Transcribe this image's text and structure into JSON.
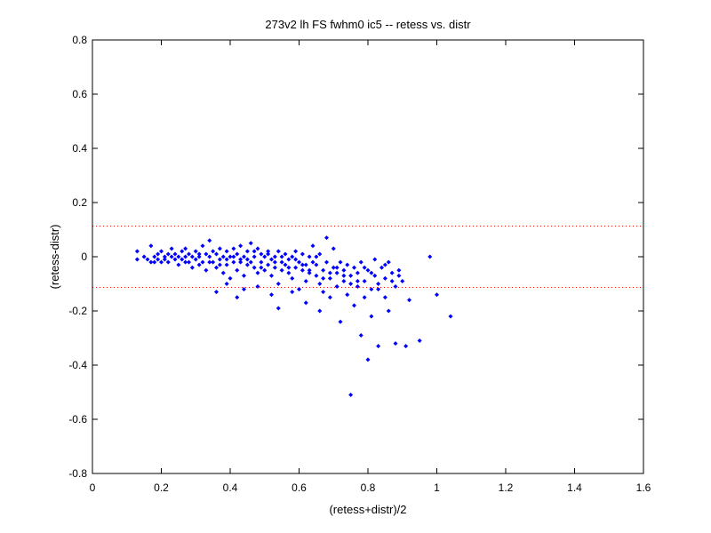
{
  "chart_data": {
    "type": "scatter",
    "title": "273v2 lh FS fwhm0 ic5 -- retess vs. distr",
    "xlabel": "(retess+distr)/2",
    "ylabel": "(retess-distr)",
    "xlim": [
      0,
      1.6
    ],
    "ylim": [
      -0.8,
      0.8
    ],
    "xticks": [
      "0",
      "0.2",
      "0.4",
      "0.6",
      "0.8",
      "1",
      "1.2",
      "1.4",
      "1.6"
    ],
    "yticks": [
      "0.8",
      "0.6",
      "0.4",
      "0.2",
      "0",
      "-0.2",
      "-0.4",
      "-0.6",
      "-0.8"
    ],
    "grid": false,
    "marker_color": "#0000ff",
    "reference_lines": {
      "y": [
        0.113,
        -0.113
      ],
      "color": "#ff0000",
      "style": "dotted"
    },
    "series": [
      {
        "points": [
          [
            0.13,
            0.02
          ],
          [
            0.13,
            -0.01
          ],
          [
            0.15,
            0.0
          ],
          [
            0.16,
            -0.01
          ],
          [
            0.17,
            -0.02
          ],
          [
            0.17,
            0.04
          ],
          [
            0.18,
            0.0
          ],
          [
            0.18,
            -0.02
          ],
          [
            0.19,
            0.01
          ],
          [
            0.19,
            -0.01
          ],
          [
            0.2,
            0.02
          ],
          [
            0.2,
            -0.02
          ],
          [
            0.21,
            0.0
          ],
          [
            0.21,
            -0.01
          ],
          [
            0.22,
            0.01
          ],
          [
            0.22,
            -0.02
          ],
          [
            0.23,
            0.0
          ],
          [
            0.23,
            0.03
          ],
          [
            0.24,
            -0.01
          ],
          [
            0.24,
            0.01
          ],
          [
            0.25,
            0.0
          ],
          [
            0.25,
            -0.03
          ],
          [
            0.26,
            0.02
          ],
          [
            0.26,
            -0.01
          ],
          [
            0.27,
            0.0
          ],
          [
            0.27,
            0.03
          ],
          [
            0.28,
            -0.02
          ],
          [
            0.28,
            0.01
          ],
          [
            0.29,
            0.0
          ],
          [
            0.29,
            -0.04
          ],
          [
            0.3,
            0.02
          ],
          [
            0.3,
            -0.01
          ],
          [
            0.31,
            0.0
          ],
          [
            0.31,
            -0.03
          ],
          [
            0.32,
            0.04
          ],
          [
            0.32,
            -0.02
          ],
          [
            0.33,
            0.01
          ],
          [
            0.33,
            -0.05
          ],
          [
            0.34,
            0.0
          ],
          [
            0.34,
            0.06
          ],
          [
            0.35,
            -0.02
          ],
          [
            0.35,
            0.02
          ],
          [
            0.36,
            -0.04
          ],
          [
            0.36,
            0.01
          ],
          [
            0.37,
            -0.01
          ],
          [
            0.37,
            0.03
          ],
          [
            0.38,
            -0.06
          ],
          [
            0.38,
            0.0
          ],
          [
            0.39,
            0.02
          ],
          [
            0.39,
            -0.03
          ],
          [
            0.4,
            0.0
          ],
          [
            0.4,
            -0.08
          ],
          [
            0.41,
            0.03
          ],
          [
            0.41,
            -0.02
          ],
          [
            0.42,
            0.01
          ],
          [
            0.42,
            -0.05
          ],
          [
            0.43,
            0.04
          ],
          [
            0.43,
            -0.01
          ],
          [
            0.44,
            0.0
          ],
          [
            0.44,
            -0.07
          ],
          [
            0.45,
            0.02
          ],
          [
            0.45,
            -0.03
          ],
          [
            0.46,
            0.05
          ],
          [
            0.46,
            -0.02
          ],
          [
            0.47,
            0.0
          ],
          [
            0.47,
            -0.04
          ],
          [
            0.48,
            0.03
          ],
          [
            0.48,
            -0.06
          ],
          [
            0.49,
            0.01
          ],
          [
            0.49,
            -0.02
          ],
          [
            0.5,
            0.0
          ],
          [
            0.5,
            -0.05
          ],
          [
            0.51,
            0.02
          ],
          [
            0.51,
            -0.03
          ],
          [
            0.52,
            -0.01
          ],
          [
            0.52,
            -0.07
          ],
          [
            0.53,
            0.0
          ],
          [
            0.53,
            -0.04
          ],
          [
            0.54,
            0.02
          ],
          [
            0.54,
            -0.1
          ],
          [
            0.55,
            -0.02
          ],
          [
            0.55,
            -0.05
          ],
          [
            0.56,
            0.01
          ],
          [
            0.56,
            -0.03
          ],
          [
            0.57,
            -0.06
          ],
          [
            0.57,
            -0.01
          ],
          [
            0.58,
            0.0
          ],
          [
            0.58,
            -0.08
          ],
          [
            0.59,
            -0.04
          ],
          [
            0.59,
            0.02
          ],
          [
            0.6,
            -0.02
          ],
          [
            0.6,
            -0.12
          ],
          [
            0.61,
            -0.05
          ],
          [
            0.61,
            0.01
          ],
          [
            0.62,
            -0.03
          ],
          [
            0.62,
            -0.09
          ],
          [
            0.63,
            0.0
          ],
          [
            0.63,
            -0.06
          ],
          [
            0.64,
            -0.02
          ],
          [
            0.64,
            0.04
          ],
          [
            0.65,
            -0.07
          ],
          [
            0.65,
            -0.03
          ],
          [
            0.66,
            -0.1
          ],
          [
            0.66,
            0.01
          ],
          [
            0.67,
            -0.05
          ],
          [
            0.67,
            -0.13
          ],
          [
            0.68,
            0.07
          ],
          [
            0.68,
            -0.02
          ],
          [
            0.69,
            -0.08
          ],
          [
            0.69,
            -0.15
          ],
          [
            0.7,
            -0.04
          ],
          [
            0.7,
            0.03
          ],
          [
            0.71,
            -0.11
          ],
          [
            0.71,
            -0.06
          ],
          [
            0.72,
            -0.02
          ],
          [
            0.72,
            -0.24
          ],
          [
            0.73,
            -0.09
          ],
          [
            0.73,
            -0.05
          ],
          [
            0.74,
            -0.14
          ],
          [
            0.74,
            -0.03
          ],
          [
            0.75,
            -0.51
          ],
          [
            0.75,
            -0.07
          ],
          [
            0.76,
            -0.18
          ],
          [
            0.76,
            -0.04
          ],
          [
            0.77,
            -0.11
          ],
          [
            0.77,
            -0.06
          ],
          [
            0.78,
            -0.29
          ],
          [
            0.78,
            -0.02
          ],
          [
            0.79,
            -0.09
          ],
          [
            0.79,
            -0.15
          ],
          [
            0.8,
            -0.38
          ],
          [
            0.8,
            -0.05
          ],
          [
            0.81,
            -0.12
          ],
          [
            0.81,
            -0.22
          ],
          [
            0.82,
            -0.07
          ],
          [
            0.82,
            -0.01
          ],
          [
            0.83,
            -0.1
          ],
          [
            0.83,
            -0.33
          ],
          [
            0.84,
            -0.04
          ],
          [
            0.85,
            -0.15
          ],
          [
            0.85,
            -0.08
          ],
          [
            0.86,
            -0.2
          ],
          [
            0.86,
            -0.02
          ],
          [
            0.87,
            -0.06
          ],
          [
            0.88,
            -0.32
          ],
          [
            0.88,
            -0.11
          ],
          [
            0.89,
            -0.07
          ],
          [
            0.9,
            -0.09
          ],
          [
            0.91,
            -0.33
          ],
          [
            0.92,
            -0.16
          ],
          [
            0.95,
            -0.31
          ],
          [
            0.98,
            0.0
          ],
          [
            1.0,
            -0.14
          ],
          [
            1.04,
            -0.22
          ],
          [
            0.27,
            -0.02
          ],
          [
            0.31,
            0.01
          ],
          [
            0.34,
            -0.02
          ],
          [
            0.37,
            -0.03
          ],
          [
            0.39,
            -0.01
          ],
          [
            0.41,
            0.0
          ],
          [
            0.43,
            -0.02
          ],
          [
            0.45,
            -0.01
          ],
          [
            0.47,
            0.02
          ],
          [
            0.49,
            -0.04
          ],
          [
            0.51,
            0.01
          ],
          [
            0.53,
            -0.02
          ],
          [
            0.55,
            0.0
          ],
          [
            0.57,
            -0.04
          ],
          [
            0.59,
            -0.01
          ],
          [
            0.61,
            -0.03
          ],
          [
            0.63,
            -0.05
          ],
          [
            0.65,
            0.0
          ],
          [
            0.67,
            -0.08
          ],
          [
            0.69,
            -0.06
          ],
          [
            0.71,
            -0.04
          ],
          [
            0.73,
            -0.07
          ],
          [
            0.75,
            -0.1
          ],
          [
            0.77,
            -0.09
          ],
          [
            0.79,
            -0.04
          ],
          [
            0.81,
            -0.06
          ],
          [
            0.83,
            -0.12
          ],
          [
            0.85,
            -0.03
          ],
          [
            0.87,
            -0.09
          ],
          [
            0.89,
            -0.05
          ],
          [
            0.36,
            -0.13
          ],
          [
            0.39,
            -0.1
          ],
          [
            0.42,
            -0.15
          ],
          [
            0.44,
            -0.12
          ],
          [
            0.48,
            -0.11
          ],
          [
            0.52,
            -0.14
          ],
          [
            0.54,
            -0.19
          ],
          [
            0.58,
            -0.13
          ],
          [
            0.62,
            -0.17
          ],
          [
            0.66,
            -0.2
          ]
        ]
      }
    ]
  }
}
